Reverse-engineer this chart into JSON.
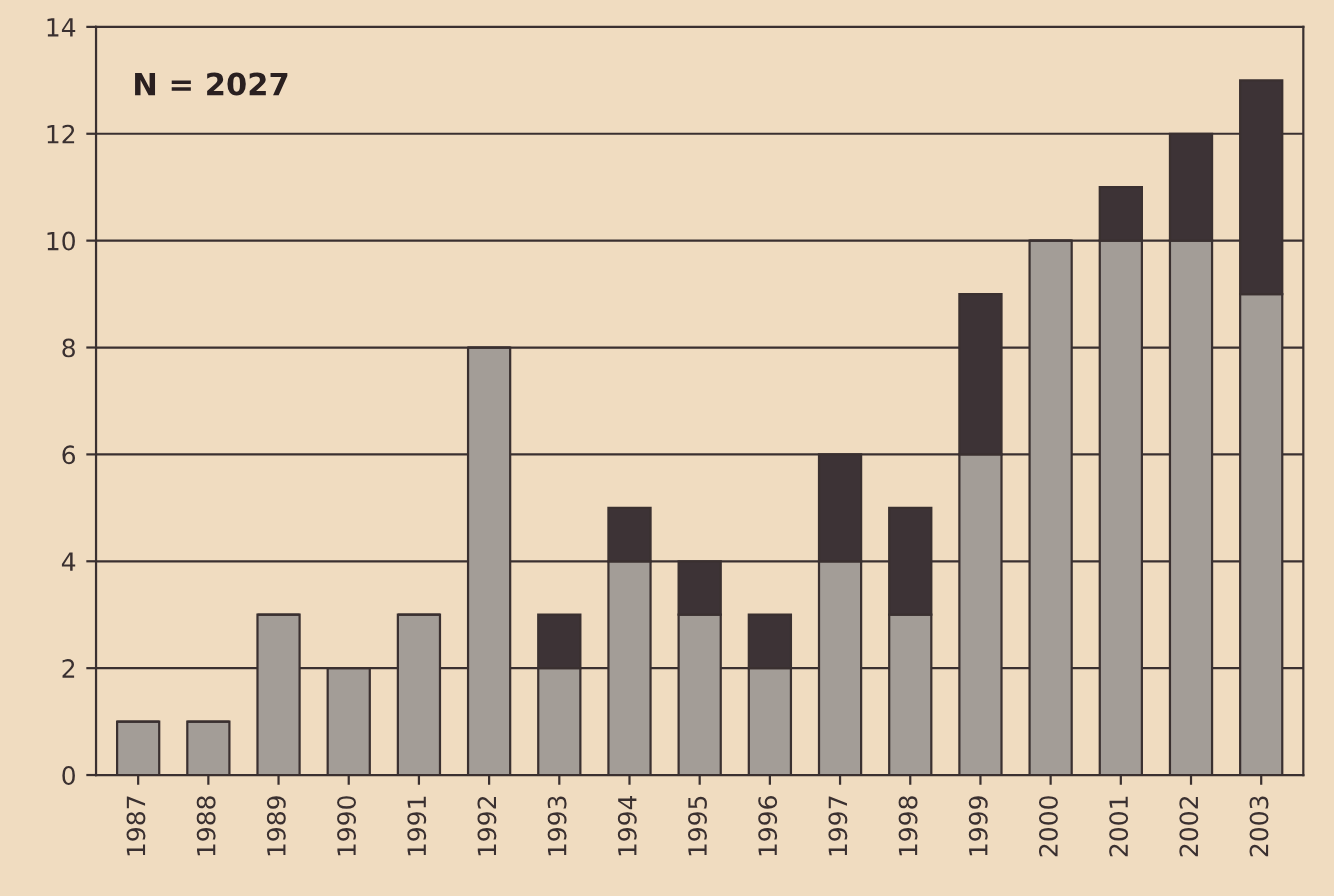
{
  "chart_data": {
    "type": "bar",
    "stacked": true,
    "categories": [
      "1987",
      "1988",
      "1989",
      "1990",
      "1991",
      "1992",
      "1993",
      "1994",
      "1995",
      "1996",
      "1997",
      "1998",
      "1999",
      "2000",
      "2001",
      "2002",
      "2003"
    ],
    "series": [
      {
        "color": "#a39d97",
        "values": [
          1,
          1,
          3,
          2,
          3,
          8,
          2,
          4,
          3,
          2,
          4,
          3,
          6,
          10,
          10,
          10,
          9
        ]
      },
      {
        "color": "#3d3336",
        "values": [
          0,
          0,
          0,
          0,
          0,
          0,
          1,
          1,
          1,
          1,
          2,
          2,
          3,
          0,
          1,
          2,
          4
        ]
      }
    ],
    "ylim": [
      0,
      14
    ],
    "yticks": [
      0,
      2,
      4,
      6,
      8,
      10,
      12,
      14
    ],
    "grid": "y",
    "annotations": [
      "N = 2027"
    ]
  }
}
